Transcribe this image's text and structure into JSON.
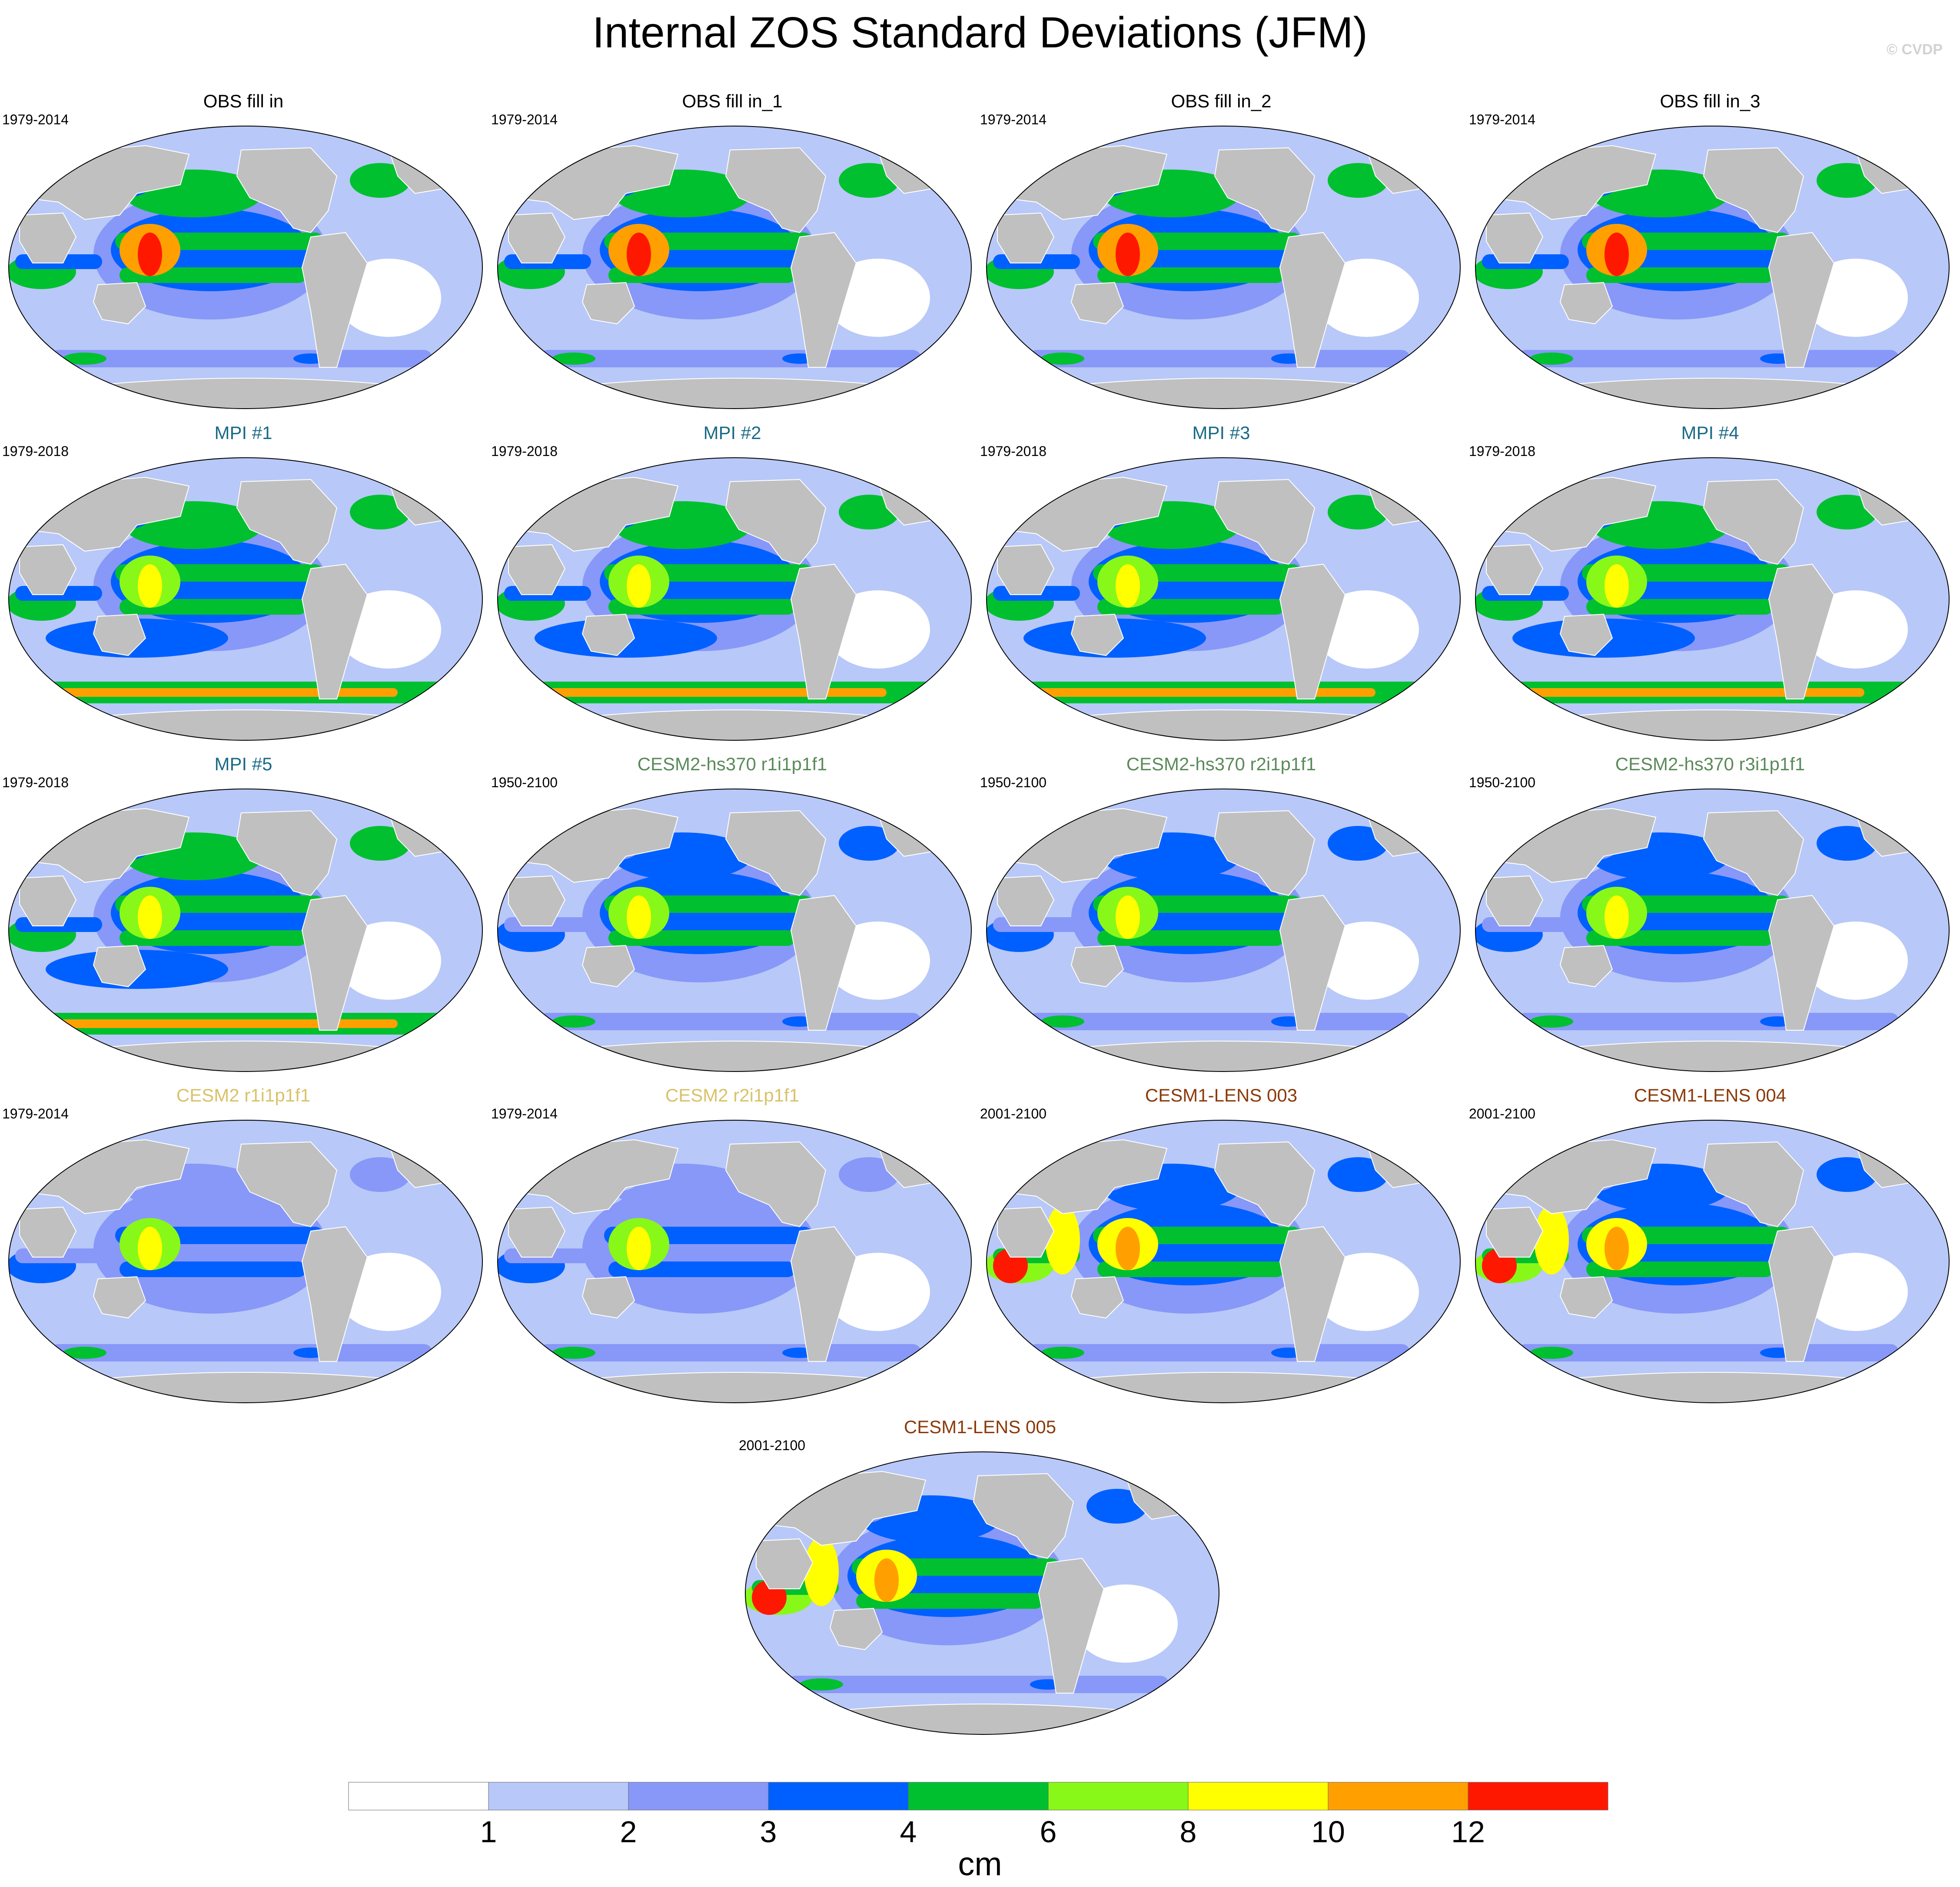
{
  "figure": {
    "title": "Internal ZOS Standard Deviations (JFM)",
    "watermark": "© CVDP"
  },
  "colors": {
    "land": "#c0c0c0",
    "ocean_levels": [
      "#ffffff",
      "#b8c8f8",
      "#8898f8",
      "#0060ff",
      "#00c030",
      "#88f818",
      "#ffff00",
      "#ffa000",
      "#ff1800"
    ]
  },
  "panels": [
    {
      "title": "OBS fill in",
      "period": "1979-2014",
      "title_color": "#000000",
      "style": "obs"
    },
    {
      "title": "OBS fill in_1",
      "period": "1979-2014",
      "title_color": "#000000",
      "style": "obs"
    },
    {
      "title": "OBS fill in_2",
      "period": "1979-2014",
      "title_color": "#000000",
      "style": "obs"
    },
    {
      "title": "OBS fill in_3",
      "period": "1979-2014",
      "title_color": "#000000",
      "style": "obs"
    },
    {
      "title": "MPI #1",
      "period": "1979-2018",
      "title_color": "#1a6b86",
      "style": "mpi"
    },
    {
      "title": "MPI #2",
      "period": "1979-2018",
      "title_color": "#1a6b86",
      "style": "mpi"
    },
    {
      "title": "MPI #3",
      "period": "1979-2018",
      "title_color": "#1a6b86",
      "style": "mpi"
    },
    {
      "title": "MPI #4",
      "period": "1979-2018",
      "title_color": "#1a6b86",
      "style": "mpi"
    },
    {
      "title": "MPI #5",
      "period": "1979-2018",
      "title_color": "#1a6b86",
      "style": "mpi"
    },
    {
      "title": "CESM2-hs370 r1i1p1f1",
      "period": "1950-2100",
      "title_color": "#5b8a5a",
      "style": "hs370"
    },
    {
      "title": "CESM2-hs370 r2i1p1f1",
      "period": "1950-2100",
      "title_color": "#5b8a5a",
      "style": "hs370"
    },
    {
      "title": "CESM2-hs370 r3i1p1f1",
      "period": "1950-2100",
      "title_color": "#5b8a5a",
      "style": "hs370"
    },
    {
      "title": "CESM2 r1i1p1f1",
      "period": "1979-2014",
      "title_color": "#d9c26a",
      "style": "cesm2"
    },
    {
      "title": "CESM2 r2i1p1f1",
      "period": "1979-2014",
      "title_color": "#d9c26a",
      "style": "cesm2"
    },
    {
      "title": "CESM1-LENS 003",
      "period": "2001-2100",
      "title_color": "#8b3a0a",
      "style": "lens"
    },
    {
      "title": "CESM1-LENS 004",
      "period": "2001-2100",
      "title_color": "#8b3a0a",
      "style": "lens"
    },
    {
      "title": "CESM1-LENS 005",
      "period": "2001-2100",
      "title_color": "#8b3a0a",
      "style": "lens"
    }
  ],
  "colorbar": {
    "tick_labels": [
      "1",
      "2",
      "3",
      "4",
      "6",
      "8",
      "10",
      "12"
    ],
    "unit": "cm"
  }
}
